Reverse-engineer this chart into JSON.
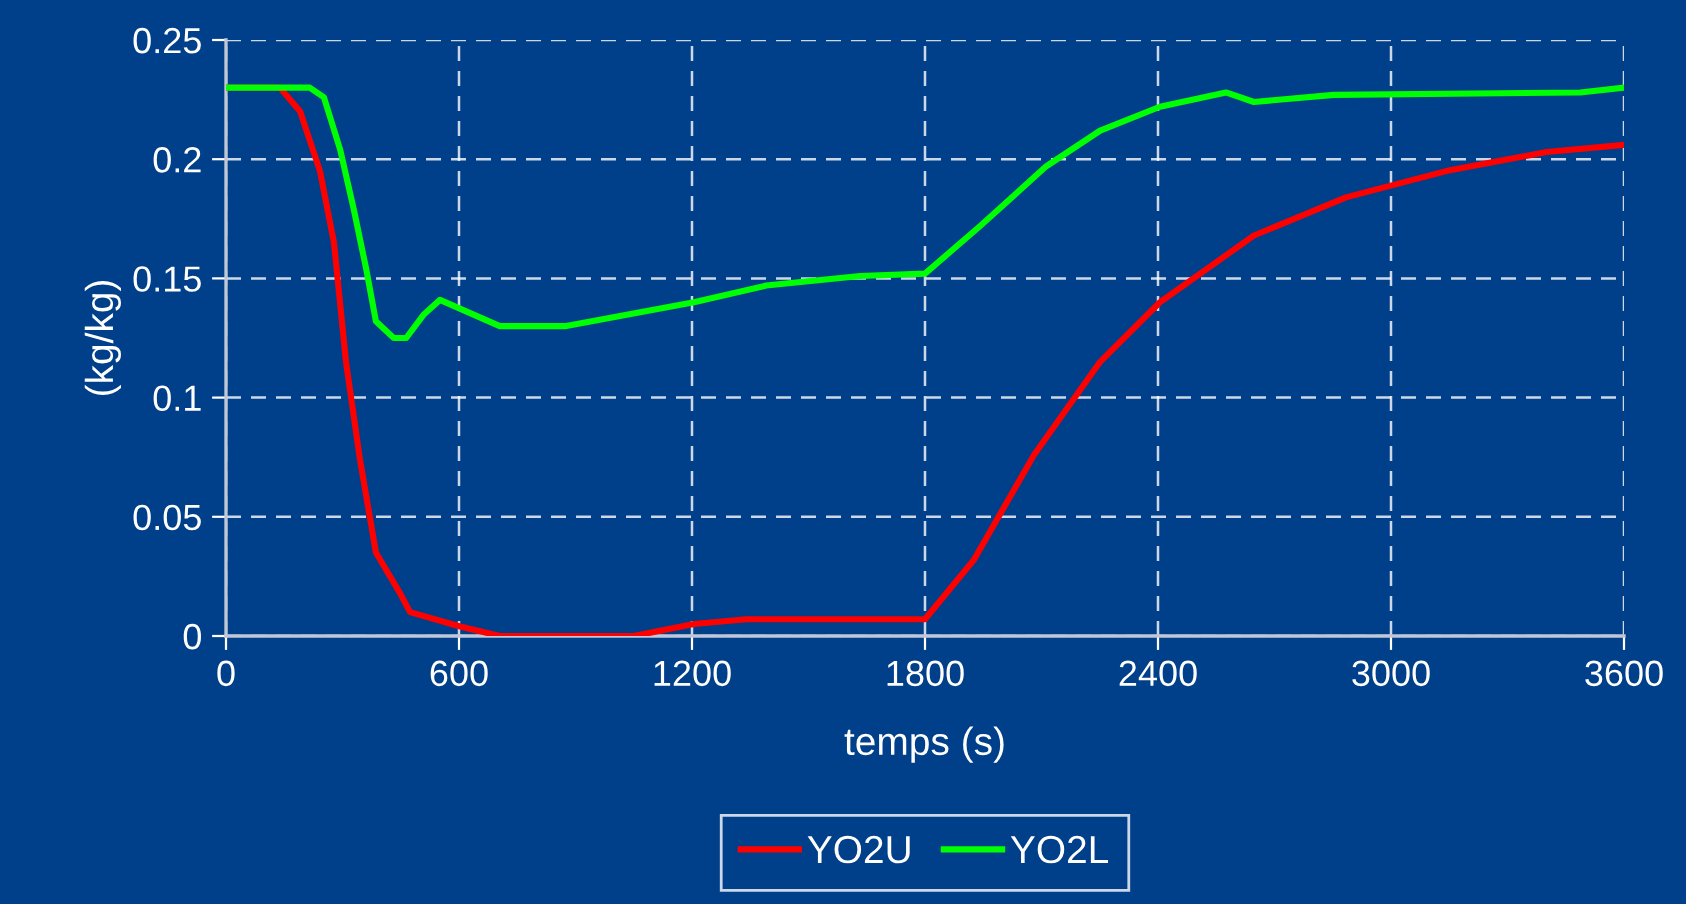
{
  "chart_data": {
    "type": "line",
    "xlabel": "temps (s)",
    "ylabel": "(kg/kg)",
    "xlim": [
      0,
      3600
    ],
    "xticks": [
      0,
      600,
      1200,
      1800,
      2400,
      3000,
      3600
    ],
    "ylim": [
      0,
      0.25
    ],
    "yticks": [
      0,
      0.05,
      0.1,
      0.15,
      0.2,
      0.25
    ],
    "grid": true,
    "legend": "bottom",
    "line_style": "solid",
    "marker": "none",
    "series": [
      {
        "name": "YO2U",
        "color": "#ff0000",
        "x": [
          0,
          139,
          191,
          242,
          278,
          309,
          345,
          386,
          448,
          474,
          603,
          705,
          1050,
          1205,
          1340,
          1800,
          1926,
          2081,
          2251,
          2405,
          2647,
          2884,
          3142,
          3400,
          3600
        ],
        "values": [
          0.23,
          0.23,
          0.22,
          0.195,
          0.165,
          0.115,
          0.074,
          0.035,
          0.018,
          0.01,
          0.004,
          0.0,
          0.0,
          0.005,
          0.007,
          0.007,
          0.032,
          0.076,
          0.115,
          0.14,
          0.168,
          0.184,
          0.195,
          0.203,
          0.206
        ]
      },
      {
        "name": "YO2L",
        "color": "#00ff00",
        "x": [
          0,
          216,
          252,
          294,
          329,
          361,
          386,
          432,
          464,
          510,
          551,
          705,
          876,
          1205,
          1391,
          1633,
          1800,
          1942,
          2112,
          2251,
          2405,
          2575,
          2647,
          2853,
          3487,
          3600
        ],
        "values": [
          0.23,
          0.23,
          0.226,
          0.204,
          0.179,
          0.154,
          0.132,
          0.125,
          0.125,
          0.135,
          0.141,
          0.13,
          0.13,
          0.14,
          0.147,
          0.151,
          0.152,
          0.172,
          0.197,
          0.212,
          0.222,
          0.228,
          0.224,
          0.227,
          0.228,
          0.23
        ]
      }
    ]
  }
}
